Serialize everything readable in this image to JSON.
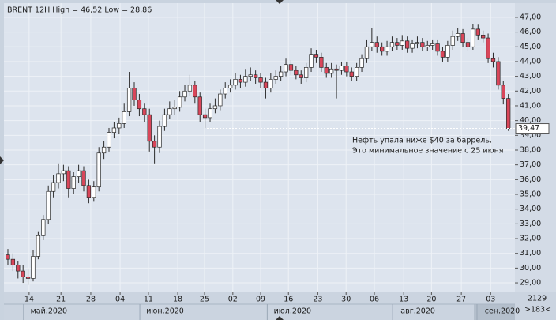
{
  "chart_data": {
    "type": "candlestick",
    "title": "BRENT 12H High = 46,52 Low = 28,86",
    "annotation": [
      "Нефть упала ниже $40 за баррель.",
      "Это минимальное значение с 25 июня"
    ],
    "last_price": {
      "value": 39.47,
      "label": "39,47"
    },
    "corner_labels": [
      "2129",
      ">183<"
    ],
    "up_color": "#ffffff",
    "down_color": "#d9465a",
    "grid": true,
    "ylim": [
      28.36,
      47.96
    ],
    "xlim": [
      -1.56,
      100.3
    ],
    "yticks": [
      {
        "value": 29,
        "label": "29,00"
      },
      {
        "value": 30,
        "label": "30,00"
      },
      {
        "value": 31,
        "label": "31,00"
      },
      {
        "value": 32,
        "label": "32,00"
      },
      {
        "value": 33,
        "label": "33,00"
      },
      {
        "value": 34,
        "label": "34,00"
      },
      {
        "value": 35,
        "label": "35,00"
      },
      {
        "value": 36,
        "label": "36,00"
      },
      {
        "value": 37,
        "label": "37,00"
      },
      {
        "value": 38,
        "label": "38,00"
      },
      {
        "value": 39,
        "label": "39,00"
      },
      {
        "value": 40,
        "label": "40,00"
      },
      {
        "value": 41,
        "label": "41,00"
      },
      {
        "value": 42,
        "label": "42,00"
      },
      {
        "value": 43,
        "label": "43,00"
      },
      {
        "value": 44,
        "label": "44,00"
      },
      {
        "value": 45,
        "label": "45,00"
      },
      {
        "value": 46,
        "label": "46,00"
      },
      {
        "value": 47,
        "label": "47,00"
      }
    ],
    "xticks": [
      {
        "value": 4.2,
        "label": "14"
      },
      {
        "value": 10.5,
        "label": "21"
      },
      {
        "value": 16.4,
        "label": "28"
      },
      {
        "value": 22.2,
        "label": "04"
      },
      {
        "value": 27.8,
        "label": "11"
      },
      {
        "value": 33.6,
        "label": "18"
      },
      {
        "value": 38.9,
        "label": "25"
      },
      {
        "value": 44.5,
        "label": "02"
      },
      {
        "value": 50.0,
        "label": "09"
      },
      {
        "value": 55.5,
        "label": "16"
      },
      {
        "value": 61.3,
        "label": "23"
      },
      {
        "value": 66.9,
        "label": "30"
      },
      {
        "value": 72.5,
        "label": "06"
      },
      {
        "value": 78.3,
        "label": "13"
      },
      {
        "value": 83.8,
        "label": "20"
      },
      {
        "value": 89.7,
        "label": "27"
      },
      {
        "value": 95.5,
        "label": "03"
      }
    ],
    "month_labels": [
      {
        "value": 8.1,
        "label": "май.2020"
      },
      {
        "value": 31.1,
        "label": "июн.2020"
      },
      {
        "value": 56.3,
        "label": "июл.2020"
      },
      {
        "value": 81.1,
        "label": "авг.2020"
      },
      {
        "value": 97.8,
        "label": "сен.2020"
      }
    ],
    "candles": [
      [
        30.9,
        31.3,
        30.2,
        30.6
      ],
      [
        30.6,
        31.0,
        29.8,
        30.2
      ],
      [
        30.2,
        30.5,
        29.3,
        29.8
      ],
      [
        29.8,
        30.2,
        29.0,
        29.4
      ],
      [
        29.4,
        29.9,
        28.86,
        29.3
      ],
      [
        29.3,
        31.2,
        29.1,
        30.8
      ],
      [
        30.8,
        32.5,
        30.6,
        32.2
      ],
      [
        32.2,
        33.6,
        31.9,
        33.3
      ],
      [
        33.3,
        35.6,
        33.0,
        35.2
      ],
      [
        35.2,
        36.3,
        34.8,
        35.8
      ],
      [
        35.8,
        37.1,
        35.4,
        36.4
      ],
      [
        36.4,
        37.0,
        35.9,
        36.6
      ],
      [
        36.6,
        36.9,
        34.8,
        35.4
      ],
      [
        35.4,
        36.5,
        35.0,
        36.2
      ],
      [
        36.2,
        37.0,
        35.8,
        36.6
      ],
      [
        36.6,
        36.9,
        35.2,
        35.6
      ],
      [
        35.6,
        36.0,
        34.4,
        34.8
      ],
      [
        34.8,
        35.9,
        34.5,
        35.5
      ],
      [
        35.5,
        38.2,
        35.2,
        37.8
      ],
      [
        37.8,
        38.6,
        37.4,
        38.2
      ],
      [
        38.2,
        39.5,
        37.9,
        39.2
      ],
      [
        39.2,
        39.9,
        38.8,
        39.5
      ],
      [
        39.5,
        40.2,
        39.1,
        39.8
      ],
      [
        39.8,
        41.2,
        39.5,
        40.6
      ],
      [
        40.6,
        43.3,
        40.3,
        42.2
      ],
      [
        42.2,
        42.6,
        41.0,
        41.4
      ],
      [
        41.4,
        41.8,
        40.3,
        40.8
      ],
      [
        40.8,
        41.2,
        39.9,
        40.4
      ],
      [
        40.4,
        40.8,
        37.9,
        38.6
      ],
      [
        38.6,
        39.0,
        37.1,
        38.2
      ],
      [
        38.2,
        40.0,
        37.8,
        39.6
      ],
      [
        39.6,
        40.8,
        39.3,
        40.4
      ],
      [
        40.4,
        41.3,
        40.1,
        40.8
      ],
      [
        40.8,
        41.4,
        40.4,
        40.9
      ],
      [
        40.9,
        42.0,
        40.6,
        41.6
      ],
      [
        41.6,
        42.4,
        41.3,
        42.0
      ],
      [
        42.0,
        43.1,
        41.7,
        42.4
      ],
      [
        42.4,
        42.7,
        41.2,
        41.6
      ],
      [
        41.6,
        41.9,
        39.9,
        40.4
      ],
      [
        40.4,
        40.8,
        39.5,
        40.2
      ],
      [
        40.2,
        41.2,
        39.9,
        40.8
      ],
      [
        40.8,
        41.5,
        40.5,
        41.0
      ],
      [
        41.0,
        42.1,
        40.7,
        41.8
      ],
      [
        41.8,
        42.6,
        41.5,
        42.2
      ],
      [
        42.2,
        42.8,
        41.9,
        42.4
      ],
      [
        42.4,
        43.2,
        42.1,
        42.8
      ],
      [
        42.8,
        43.1,
        42.2,
        42.6
      ],
      [
        42.6,
        43.5,
        42.3,
        43.0
      ],
      [
        43.0,
        43.6,
        42.7,
        43.1
      ],
      [
        43.1,
        43.4,
        42.5,
        42.9
      ],
      [
        42.9,
        43.2,
        42.2,
        42.6
      ],
      [
        42.6,
        42.9,
        41.5,
        42.2
      ],
      [
        42.2,
        43.2,
        41.9,
        42.8
      ],
      [
        42.8,
        43.4,
        42.5,
        43.0
      ],
      [
        43.0,
        43.7,
        42.7,
        43.3
      ],
      [
        43.3,
        44.2,
        43.0,
        43.8
      ],
      [
        43.8,
        44.1,
        43.1,
        43.4
      ],
      [
        43.4,
        43.7,
        42.8,
        43.1
      ],
      [
        43.1,
        43.4,
        42.5,
        42.9
      ],
      [
        42.9,
        43.9,
        42.6,
        43.6
      ],
      [
        43.6,
        44.9,
        43.3,
        44.5
      ],
      [
        44.5,
        44.8,
        43.9,
        44.3
      ],
      [
        44.3,
        44.6,
        43.3,
        43.6
      ],
      [
        43.6,
        43.9,
        42.9,
        43.2
      ],
      [
        43.2,
        43.9,
        42.9,
        43.5
      ],
      [
        43.5,
        43.8,
        41.5,
        43.4
      ],
      [
        43.4,
        44.0,
        43.1,
        43.7
      ],
      [
        43.7,
        44.0,
        43.0,
        43.3
      ],
      [
        43.3,
        43.6,
        42.7,
        43.0
      ],
      [
        43.0,
        43.9,
        42.7,
        43.6
      ],
      [
        43.6,
        44.5,
        43.3,
        44.2
      ],
      [
        44.2,
        45.5,
        43.9,
        45.0
      ],
      [
        45.0,
        46.3,
        44.7,
        45.3
      ],
      [
        45.3,
        45.7,
        44.6,
        45.0
      ],
      [
        45.0,
        45.3,
        44.4,
        44.7
      ],
      [
        44.7,
        45.4,
        44.4,
        45.0
      ],
      [
        45.0,
        45.7,
        44.7,
        45.3
      ],
      [
        45.3,
        45.6,
        44.8,
        45.1
      ],
      [
        45.1,
        45.8,
        44.8,
        45.4
      ],
      [
        45.4,
        45.7,
        44.6,
        44.9
      ],
      [
        44.9,
        45.5,
        44.6,
        45.2
      ],
      [
        45.2,
        45.7,
        44.9,
        45.3
      ],
      [
        45.3,
        45.6,
        44.7,
        45.0
      ],
      [
        45.0,
        45.4,
        44.7,
        45.1
      ],
      [
        45.1,
        45.5,
        44.8,
        45.2
      ],
      [
        45.2,
        45.5,
        44.4,
        44.7
      ],
      [
        44.7,
        45.0,
        44.0,
        44.3
      ],
      [
        44.3,
        45.4,
        44.0,
        45.1
      ],
      [
        45.1,
        46.1,
        44.8,
        45.7
      ],
      [
        45.7,
        46.3,
        45.4,
        45.9
      ],
      [
        45.9,
        46.2,
        45.0,
        45.3
      ],
      [
        45.3,
        45.6,
        44.7,
        45.0
      ],
      [
        45.0,
        46.52,
        44.8,
        46.2
      ],
      [
        46.2,
        46.5,
        45.5,
        45.8
      ],
      [
        45.8,
        46.1,
        45.3,
        45.6
      ],
      [
        45.6,
        45.9,
        43.9,
        44.2
      ],
      [
        44.2,
        44.6,
        43.6,
        44.0
      ],
      [
        44.0,
        44.3,
        42.1,
        42.4
      ],
      [
        42.4,
        42.7,
        41.1,
        41.5
      ],
      [
        41.5,
        41.8,
        39.3,
        39.47
      ]
    ]
  }
}
